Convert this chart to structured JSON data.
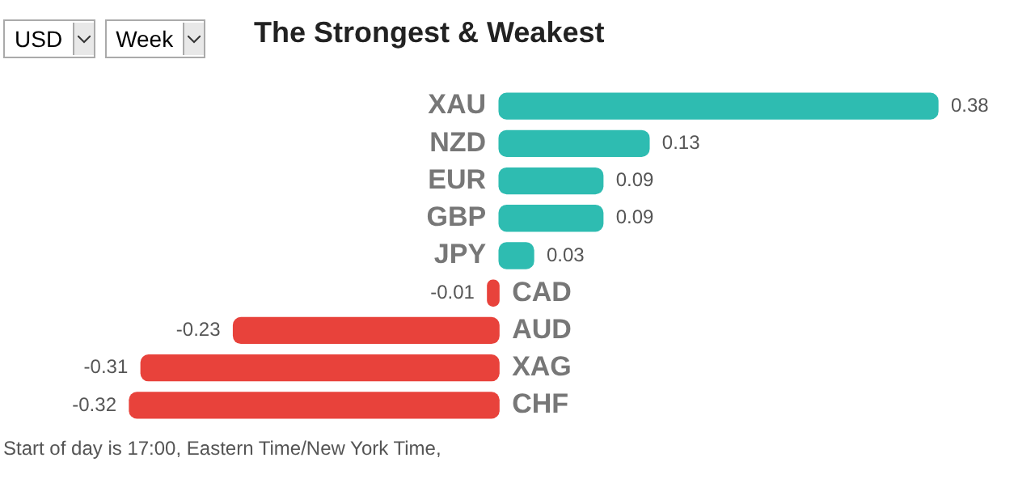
{
  "chart_data": {
    "type": "bar",
    "orientation": "horizontal",
    "title": "The Strongest & Weakest",
    "categories": [
      "XAU",
      "NZD",
      "EUR",
      "GBP",
      "JPY",
      "CAD",
      "AUD",
      "XAG",
      "CHF"
    ],
    "values": [
      0.38,
      0.13,
      0.09,
      0.09,
      0.03,
      -0.01,
      -0.23,
      -0.31,
      -0.32
    ],
    "colors": [
      "#2ebcb1",
      "#2ebcb1",
      "#2ebcb1",
      "#2ebcb1",
      "#2ebcb1",
      "#e8423b",
      "#e8423b",
      "#e8423b",
      "#e8423b"
    ],
    "data_labels": true,
    "legend": false,
    "annotations": [
      "USD",
      "Week",
      "Start of day is 17:00, Eastern Time/New York Time,"
    ]
  }
}
